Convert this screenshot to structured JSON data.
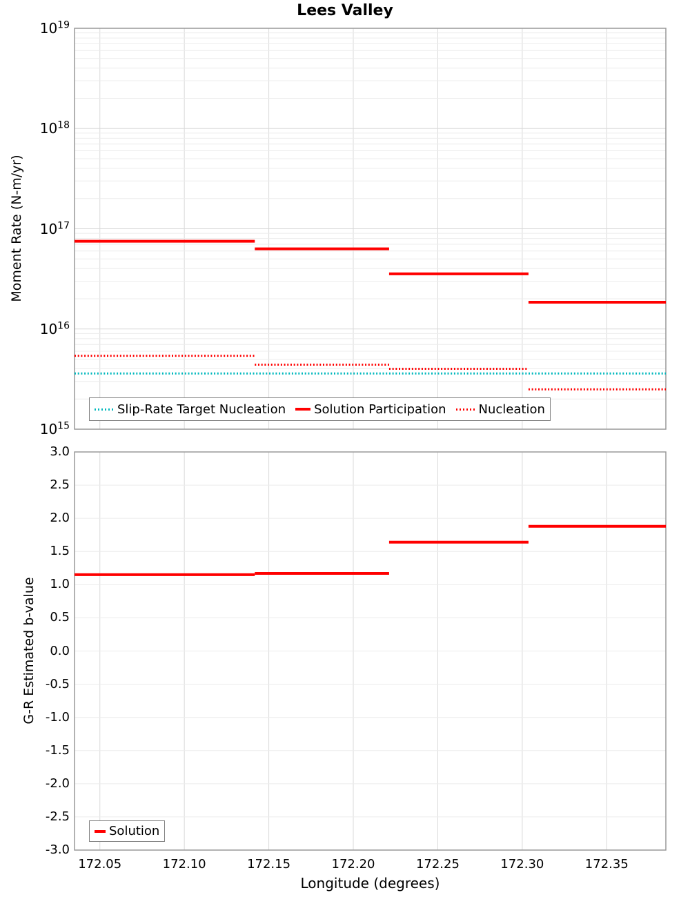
{
  "colors": {
    "red": "#ff0000",
    "cyan": "#00b8bd",
    "grid_major": "#d9d9d9",
    "grid_minor": "#ececec",
    "spine": "#999999",
    "legend_border": "#808080",
    "text": "#000000",
    "background": "#ffffff"
  },
  "chart_data": [
    {
      "type": "line",
      "title": "Lees Valley",
      "ylabel": "Moment Rate (N-m/yr)",
      "xlabel": "",
      "yscale": "log",
      "ylim": [
        1000000000000000.0,
        1e+19
      ],
      "xlim": [
        172.035,
        172.385
      ],
      "y_ticks_exponents": [
        19,
        18,
        17,
        16,
        15
      ],
      "x_ticks": [
        172.05,
        172.1,
        172.15,
        172.2,
        172.25,
        172.3,
        172.35
      ],
      "grid": true,
      "legend_position": "lower-left-inside",
      "series": [
        {
          "name": "Slip-Rate Target Nucleation",
          "color_key": "cyan",
          "style": "dotted",
          "segments": [
            {
              "x0": 172.035,
              "x1": 172.385,
              "y": 3600000000000000.0
            }
          ]
        },
        {
          "name": "Solution Participation",
          "color_key": "red",
          "style": "solid",
          "segments": [
            {
              "x0": 172.035,
              "x1": 172.1417,
              "y": 7.5e+16
            },
            {
              "x0": 172.1417,
              "x1": 172.2212,
              "y": 6.3e+16
            },
            {
              "x0": 172.2212,
              "x1": 172.3037,
              "y": 3.55e+16
            },
            {
              "x0": 172.3037,
              "x1": 172.385,
              "y": 1.85e+16
            }
          ]
        },
        {
          "name": "Nucleation",
          "color_key": "red",
          "style": "dotted",
          "segments": [
            {
              "x0": 172.035,
              "x1": 172.1417,
              "y": 5400000000000000.0
            },
            {
              "x0": 172.1417,
              "x1": 172.2212,
              "y": 4400000000000000.0
            },
            {
              "x0": 172.2212,
              "x1": 172.3037,
              "y": 4000000000000000.0
            },
            {
              "x0": 172.3037,
              "x1": 172.385,
              "y": 2500000000000000.0
            }
          ]
        }
      ]
    },
    {
      "type": "line",
      "title": "",
      "ylabel": "G-R Estimated b-value",
      "xlabel": "Longitude (degrees)",
      "yscale": "linear",
      "ylim": [
        -3.0,
        3.0
      ],
      "xlim": [
        172.035,
        172.385
      ],
      "y_ticks": [
        3.0,
        2.5,
        2.0,
        1.5,
        1.0,
        0.5,
        0.0,
        -0.5,
        -1.0,
        -1.5,
        -2.0,
        -2.5,
        -3.0
      ],
      "y_tick_labels": [
        "3.0",
        "2.5",
        "2.0",
        "1.5",
        "1.0",
        "0.5",
        "0.0",
        "-0.5",
        "-1.0",
        "-1.5",
        "-2.0",
        "-2.5",
        "-3.0"
      ],
      "x_ticks": [
        172.05,
        172.1,
        172.15,
        172.2,
        172.25,
        172.3,
        172.35
      ],
      "x_tick_labels": [
        "172.05",
        "172.10",
        "172.15",
        "172.20",
        "172.25",
        "172.30",
        "172.35"
      ],
      "grid": true,
      "legend_position": "lower-left-inside",
      "series": [
        {
          "name": "Solution",
          "color_key": "red",
          "style": "solid",
          "segments": [
            {
              "x0": 172.035,
              "x1": 172.1417,
              "y": 1.15
            },
            {
              "x0": 172.1417,
              "x1": 172.2212,
              "y": 1.17
            },
            {
              "x0": 172.2212,
              "x1": 172.3037,
              "y": 1.64
            },
            {
              "x0": 172.3037,
              "x1": 172.385,
              "y": 1.88
            }
          ]
        }
      ]
    }
  ]
}
